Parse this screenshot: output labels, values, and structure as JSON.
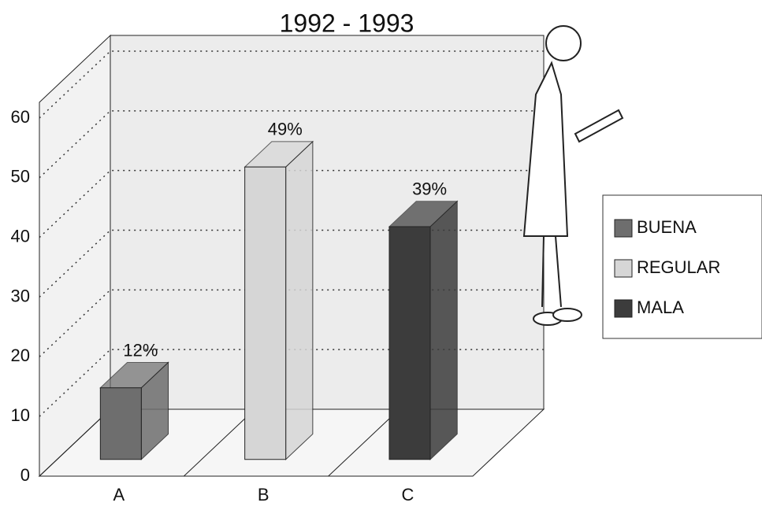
{
  "chart_data": {
    "type": "bar3d",
    "title": "1992 - 1993",
    "categories": [
      "A",
      "B",
      "C"
    ],
    "series": [
      {
        "name": "BUENA",
        "color": "#6e6e6e",
        "values": [
          12,
          null,
          null
        ],
        "value_labels": [
          "12%",
          null,
          null
        ]
      },
      {
        "name": "REGULAR",
        "color": "#d6d6d6",
        "values": [
          null,
          49,
          null
        ],
        "value_labels": [
          null,
          "49%",
          null
        ]
      },
      {
        "name": "MALA",
        "color": "#3c3c3c",
        "values": [
          null,
          null,
          39
        ],
        "value_labels": [
          null,
          null,
          "39%"
        ]
      }
    ],
    "ylim": [
      0,
      60
    ],
    "yticks": [
      0,
      10,
      20,
      30,
      40,
      50,
      60
    ],
    "grid": true,
    "legend": "right"
  }
}
